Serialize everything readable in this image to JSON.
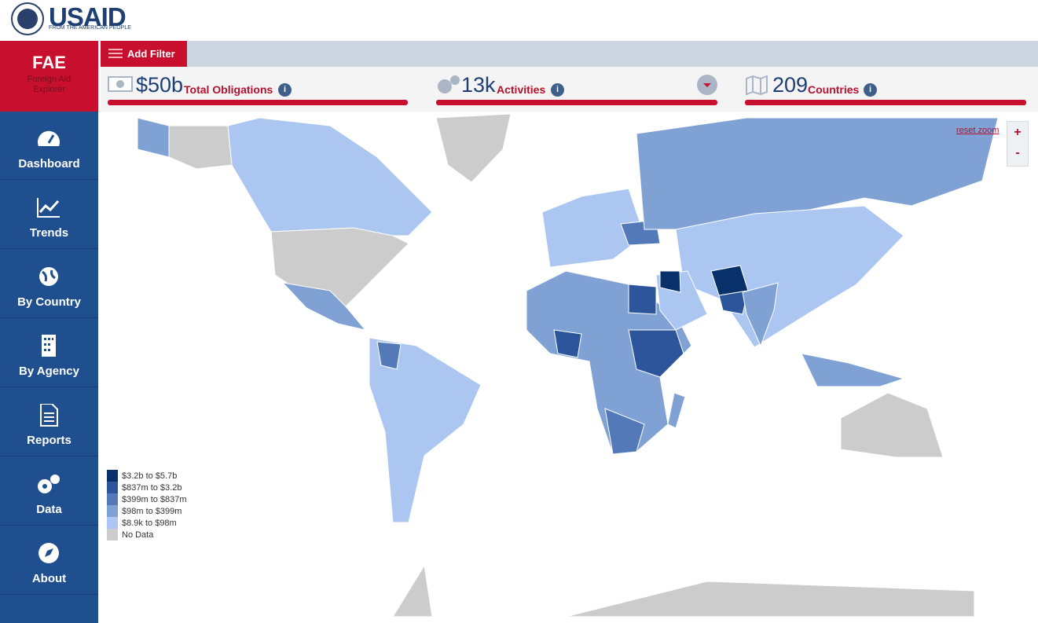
{
  "header": {
    "logo_title": "USAID",
    "logo_subtitle": "FROM THE AMERICAN PEOPLE"
  },
  "sidebar": {
    "brand": "FAE",
    "brand_subtitle": "Foreign Aid Explorer",
    "nav": [
      "Dashboard",
      "Trends",
      "By Country",
      "By Agency",
      "Reports",
      "Data",
      "About"
    ]
  },
  "toolbar": {
    "add_filter": "Add Filter"
  },
  "stats": [
    {
      "value": "$50b",
      "label": "Total Obligations"
    },
    {
      "value": "13k",
      "label": "Activities"
    },
    {
      "value": "209",
      "label": "Countries"
    }
  ],
  "map": {
    "reset_zoom": "reset zoom",
    "zoom_in": "+",
    "zoom_out": "-",
    "legend": [
      {
        "label": "$3.2b to $5.7b",
        "color": "#08306b"
      },
      {
        "label": "$837m to $3.2b",
        "color": "#2c559c"
      },
      {
        "label": "$399m to $837m",
        "color": "#5479b8"
      },
      {
        "label": "$98m to $399m",
        "color": "#7fa1d4"
      },
      {
        "label": "$8.9k to $98m",
        "color": "#abc7f1"
      },
      {
        "label": "No Data",
        "color": "#cccccc"
      }
    ]
  }
}
